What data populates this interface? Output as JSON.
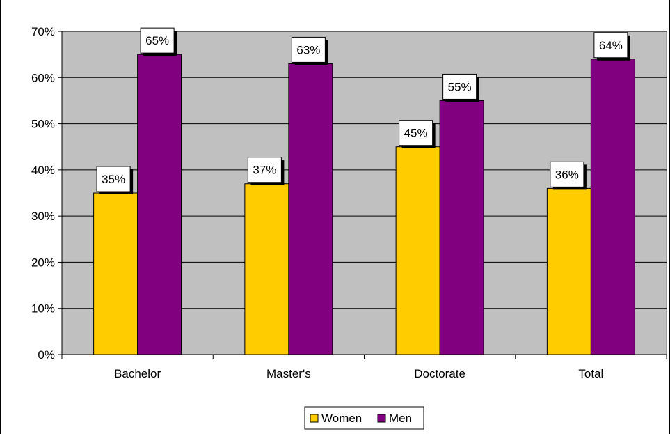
{
  "chart_data": {
    "type": "bar",
    "categories": [
      "Bachelor",
      "Master's",
      "Doctorate",
      "Total"
    ],
    "series": [
      {
        "name": "Women",
        "values": [
          35,
          37,
          45,
          36
        ],
        "labels": [
          "35%",
          "37%",
          "45%",
          "36%"
        ],
        "color": "#FFCC00"
      },
      {
        "name": "Men",
        "values": [
          65,
          63,
          55,
          64
        ],
        "labels": [
          "65%",
          "63%",
          "55%",
          "64%"
        ],
        "color": "#800080"
      }
    ],
    "y_ticks": [
      "0%",
      "10%",
      "20%",
      "30%",
      "40%",
      "50%",
      "60%",
      "70%"
    ],
    "ylim": [
      0,
      70
    ],
    "grid": true,
    "plot_background": "#C0C0C0",
    "legend_position": "bottom"
  }
}
